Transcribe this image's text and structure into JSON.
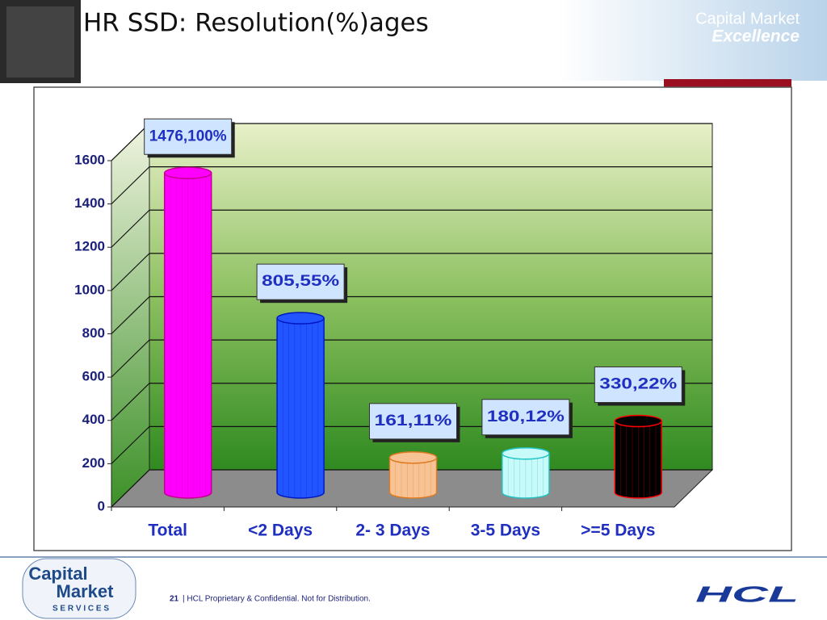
{
  "chart_data": {
    "type": "bar",
    "title": "HR SSD: Resolution(%)ages",
    "categories": [
      "Total",
      "<2 Days",
      "2- 3 Days",
      "3-5 Days",
      ">=5 Days"
    ],
    "values": [
      1476,
      805,
      161,
      180,
      330
    ],
    "value_labels": [
      "1476,100%",
      "805,55%",
      "161,11%",
      "180,12%",
      "330,22%"
    ],
    "colors": [
      "#ff00ff",
      "#2255ff",
      "#f7c394",
      "#c8fafa",
      "#000000"
    ],
    "edge_colors": [
      "#c4008f",
      "#0018c0",
      "#e07a20",
      "#20c4c4",
      "#ff0000"
    ],
    "ylim": [
      0,
      1600
    ],
    "yticks": [
      0,
      200,
      400,
      600,
      800,
      1000,
      1200,
      1400,
      1600
    ],
    "grid": true
  },
  "slide": {
    "logo_top": [
      "Capital Market",
      "Excellence"
    ],
    "footer_logo": [
      "Capital",
      "Market",
      "S E R V I C E S"
    ],
    "page_number": "21",
    "footer_text": "|  HCL Proprietary & Confidential. Not for Distribution.",
    "hcl_logo": "HCL"
  }
}
